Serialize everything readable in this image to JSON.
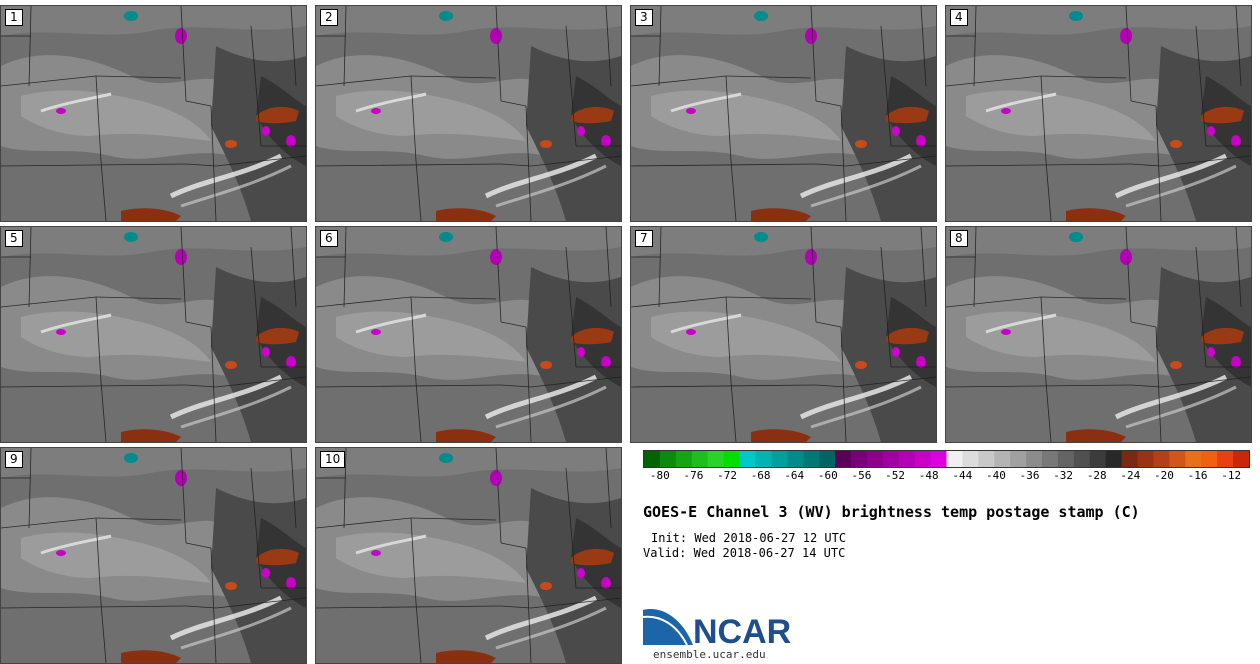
{
  "figure": {
    "title": "GOES-E Channel 3 (WV) brightness temp postage stamp (C)",
    "init_label": "Init:",
    "init_value": "Wed 2018-06-27 12 UTC",
    "valid_label": "Valid:",
    "valid_value": "Wed 2018-06-27 14 UTC"
  },
  "panels": [
    "1",
    "2",
    "3",
    "4",
    "5",
    "6",
    "7",
    "8",
    "9",
    "10"
  ],
  "colorbar": {
    "colors": [
      "#006400",
      "#0c8a0c",
      "#14a514",
      "#1ebe1e",
      "#2ad22a",
      "#00e000",
      "#00c8c8",
      "#00b4b4",
      "#00a0a0",
      "#008c8c",
      "#007878",
      "#006464",
      "#5a005a",
      "#780078",
      "#8c008c",
      "#a000a0",
      "#b400b4",
      "#c800c8",
      "#dc00dc",
      "#f0f0f0",
      "#dcdcdc",
      "#c8c8c8",
      "#b4b4b4",
      "#a0a0a0",
      "#8c8c8c",
      "#787878",
      "#646464",
      "#505050",
      "#3c3c3c",
      "#282828",
      "#7a2a10",
      "#963414",
      "#b44018",
      "#d2561a",
      "#e8701c",
      "#f06010",
      "#e84010",
      "#c82808"
    ],
    "ticks": [
      "-80",
      "-76",
      "-72",
      "-68",
      "-64",
      "-60",
      "-56",
      "-52",
      "-48",
      "-44",
      "-40",
      "-36",
      "-32",
      "-28",
      "-24",
      "-20",
      "-16",
      "-12"
    ],
    "min": -82,
    "max": -10
  },
  "logo": {
    "text": "NCAR",
    "url": "ensemble.ucar.edu",
    "colors": {
      "text": "#1f4e8c",
      "swoosh": "#1a66a8"
    }
  }
}
